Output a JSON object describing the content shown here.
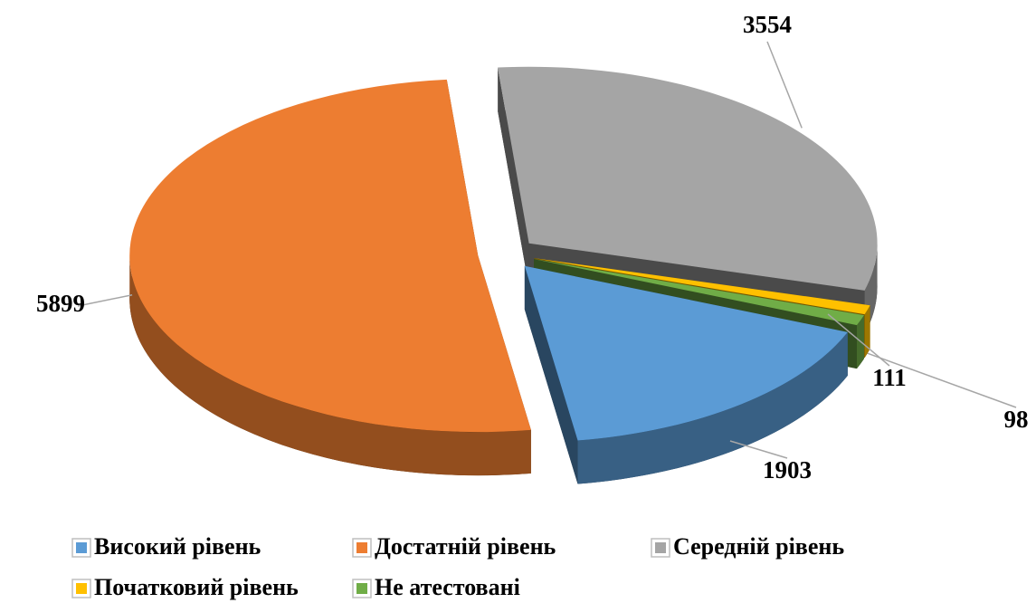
{
  "chart_data": {
    "type": "pie3d",
    "categories": [
      "Високий рівень",
      "Достатній рівень",
      "Середній рівень",
      "Початковий рівень",
      "Не атестовані"
    ],
    "values": [
      1903,
      5899,
      3554,
      98,
      111
    ],
    "colors": [
      "#5b9bd5",
      "#ed7d31",
      "#a5a5a5",
      "#ffc000",
      "#70ad47"
    ],
    "legend": "bottom"
  }
}
